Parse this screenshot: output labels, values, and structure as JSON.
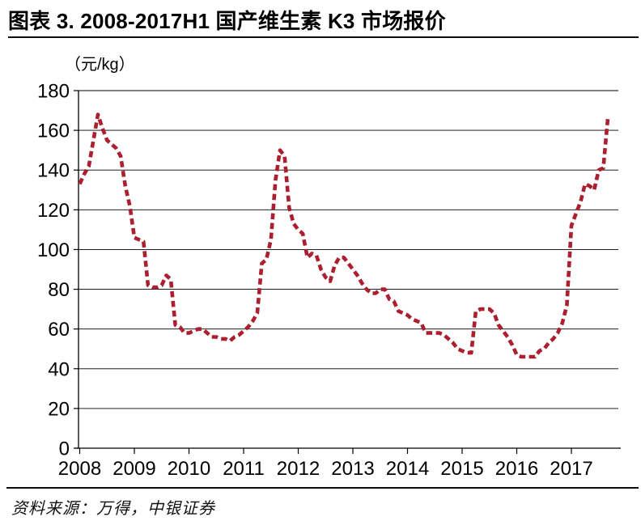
{
  "header": {
    "title": "图表 3. 2008-2017H1 国产维生素 K3 市场报价"
  },
  "footer": {
    "source": "资料来源：万得，中银证券"
  },
  "chart_data": {
    "type": "line",
    "title": "图表 3. 2008-2017H1 国产维生素 K3 市场报价",
    "unit_label": "（元/kg）",
    "xlabel": "",
    "ylabel": "元/kg",
    "ylim": [
      0,
      180
    ],
    "y_ticks": [
      0,
      20,
      40,
      60,
      80,
      100,
      120,
      140,
      160,
      180
    ],
    "x_tick_labels": [
      "2008",
      "2009",
      "2010",
      "2011",
      "2012",
      "2013",
      "2014",
      "2015",
      "2016",
      "2017"
    ],
    "grid": "horizontal",
    "legend": "none",
    "line_color": "#AC1F2F",
    "line_style": "dashed",
    "axis_color": "#000000",
    "series": [
      {
        "name": "国产维生素K3市场报价",
        "start": "2008-01",
        "frequency": "monthly",
        "values": [
          133,
          138,
          142,
          155,
          168,
          161,
          155,
          153,
          151,
          147,
          132,
          122,
          106,
          105,
          104,
          82,
          81,
          81,
          82,
          87,
          85,
          62,
          61,
          58,
          58,
          59,
          60,
          60,
          58,
          56,
          56,
          55,
          55,
          54,
          56,
          57,
          59,
          61,
          64,
          68,
          93,
          95,
          105,
          135,
          150,
          147,
          121,
          113,
          110,
          108,
          96,
          98,
          97,
          90,
          86,
          84,
          92,
          96,
          96,
          93,
          90,
          87,
          83,
          80,
          78,
          78,
          80,
          80,
          75,
          74,
          69,
          68,
          67,
          65,
          64,
          63,
          58,
          58,
          58,
          58,
          57,
          55,
          53,
          50,
          49,
          48,
          48,
          69,
          70,
          70,
          70,
          68,
          62,
          59,
          56,
          52,
          47,
          46,
          46,
          46,
          46,
          49,
          50,
          53,
          55,
          58,
          63,
          72,
          112,
          118,
          124,
          133,
          132,
          130,
          140,
          141,
          166
        ]
      }
    ]
  }
}
